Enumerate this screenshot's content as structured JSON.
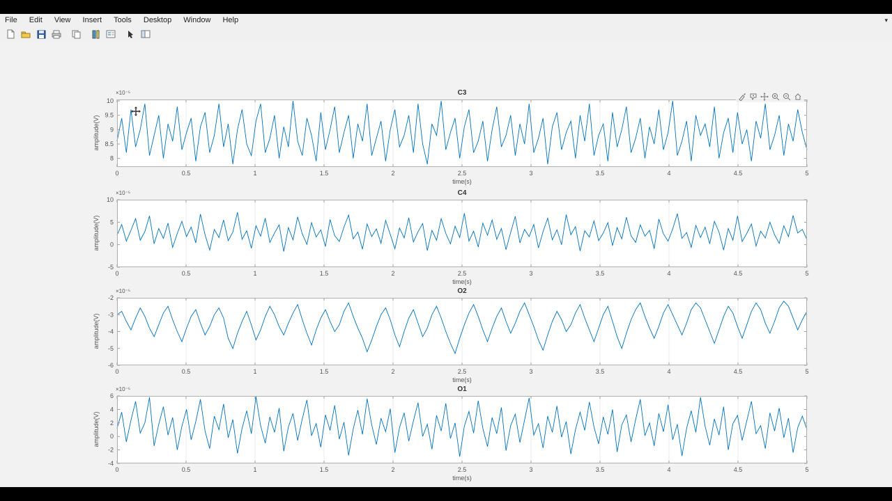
{
  "window": {
    "app": "MATLAB Figure",
    "background": "#f0f0f0",
    "canvas_background": "#f2f2f2"
  },
  "menu_bar": {
    "items": [
      "File",
      "Edit",
      "View",
      "Insert",
      "Tools",
      "Desktop",
      "Window",
      "Help"
    ],
    "overflow_icon": "▾"
  },
  "toolbar": {
    "icons": [
      "new-figure",
      "open-file",
      "save-figure",
      "print-figure",
      "copy-figure",
      "insert-colorbar",
      "insert-legend",
      "edit-plot",
      "property-editor"
    ]
  },
  "axes_toolbar": {
    "icons": [
      "brush",
      "data-cursor",
      "pan",
      "zoom-in",
      "zoom-out",
      "restore-view"
    ]
  },
  "chart_data": [
    {
      "type": "line",
      "title": "C3",
      "xlabel": "time(s)",
      "ylabel": "amplitude(V)",
      "exponent_label": "×10⁻⁵",
      "units_scale": "1e-5",
      "line_color": "#0072BD",
      "grid": "vertical",
      "xlim": [
        0,
        5
      ],
      "ylim": [
        7.7,
        10.05
      ],
      "xticks": [
        0,
        0.5,
        1,
        1.5,
        2,
        2.5,
        3,
        3.5,
        4,
        4.5,
        5
      ],
      "xtick_labels": [
        "0",
        "0.5",
        "1",
        "1.5",
        "2",
        "2.5",
        "3",
        "3.5",
        "4",
        "4.5",
        "5"
      ],
      "yticks": [
        8,
        8.5,
        9,
        9.5,
        10
      ],
      "ytick_labels": [
        "8",
        "8.5",
        "9",
        "9.5",
        "10"
      ],
      "values": [
        8.6,
        9.4,
        8.2,
        9.7,
        8.4,
        9.0,
        9.9,
        8.1,
        8.8,
        9.5,
        8.0,
        9.2,
        8.6,
        9.8,
        8.3,
        8.9,
        9.4,
        7.9,
        9.1,
        9.6,
        8.2,
        8.8,
        9.9,
        8.4,
        9.2,
        7.8,
        9.0,
        9.7,
        8.5,
        8.1,
        9.3,
        9.9,
        8.2,
        8.7,
        9.5,
        8.0,
        9.1,
        8.4,
        10.0,
        8.6,
        8.1,
        9.4,
        8.8,
        7.9,
        9.6,
        8.3,
        9.0,
        9.8,
        8.2,
        8.9,
        9.5,
        8.0,
        9.2,
        8.6,
        9.9,
        8.1,
        8.7,
        9.3,
        7.9,
        9.0,
        9.7,
        8.4,
        8.8,
        9.5,
        8.2,
        9.9,
        8.5,
        7.8,
        9.2,
        8.8,
        10.0,
        8.3,
        8.9,
        9.4,
        8.0,
        9.1,
        9.7,
        8.2,
        8.6,
        9.3,
        7.9,
        9.0,
        9.8,
        8.4,
        8.8,
        9.5,
        8.1,
        9.2,
        8.5,
        9.9,
        8.2,
        8.7,
        9.4,
        7.8,
        9.1,
        9.6,
        8.3,
        8.9,
        9.3,
        8.0,
        9.5,
        8.6,
        9.9,
        8.1,
        8.8,
        9.2,
        7.9,
        9.6,
        8.4,
        9.0,
        9.8,
        8.2,
        8.7,
        9.4,
        8.0,
        9.1,
        8.5,
        9.7,
        8.3,
        8.9,
        10.0,
        8.1,
        8.6,
        9.3,
        7.9,
        9.5,
        8.8,
        9.2,
        8.4,
        9.8,
        8.0,
        8.9,
        9.4,
        8.2,
        9.6,
        8.5,
        9.0,
        7.9,
        9.3,
        8.7,
        9.9,
        8.3,
        8.8,
        9.5,
        8.1,
        9.2,
        8.6,
        9.7,
        8.9,
        8.3
      ]
    },
    {
      "type": "line",
      "title": "C4",
      "xlabel": "time(s)",
      "ylabel": "amplitude(V)",
      "exponent_label": "×10⁻⁵",
      "units_scale": "1e-5",
      "line_color": "#0072BD",
      "grid": "vertical",
      "xlim": [
        0,
        5
      ],
      "ylim": [
        -5,
        10
      ],
      "xticks": [
        0,
        0.5,
        1,
        1.5,
        2,
        2.5,
        3,
        3.5,
        4,
        4.5,
        5
      ],
      "xtick_labels": [
        "0",
        "0.5",
        "1",
        "1.5",
        "2",
        "2.5",
        "3",
        "3.5",
        "4",
        "4.5",
        "5"
      ],
      "yticks": [
        -5,
        0,
        5,
        10
      ],
      "ytick_labels": [
        "-5",
        "0",
        "5",
        "10"
      ],
      "values": [
        2.1,
        4.5,
        0.8,
        3.2,
        5.8,
        1.0,
        2.9,
        6.4,
        0.2,
        3.6,
        1.4,
        4.8,
        -0.6,
        2.5,
        5.2,
        1.8,
        3.9,
        0.4,
        6.8,
        2.2,
        -1.2,
        3.4,
        1.6,
        5.5,
        0.9,
        2.8,
        7.2,
        1.2,
        3.1,
        -0.8,
        4.2,
        1.9,
        5.9,
        0.5,
        2.6,
        4.4,
        -1.5,
        3.8,
        1.1,
        6.2,
        2.4,
        0.1,
        4.9,
        1.7,
        3.3,
        -0.4,
        5.6,
        2.0,
        0.7,
        3.9,
        6.6,
        1.3,
        2.8,
        -1.0,
        4.6,
        1.8,
        3.5,
        0.3,
        5.4,
        2.3,
        -0.9,
        3.7,
        1.5,
        6.0,
        0.6,
        2.9,
        4.7,
        -1.3,
        3.2,
        1.0,
        5.8,
        2.5,
        0.2,
        4.1,
        1.6,
        7.0,
        0.8,
        3.0,
        -0.5,
        4.8,
        2.1,
        5.5,
        1.2,
        3.6,
        -1.1,
        2.7,
        6.3,
        0.4,
        3.4,
        1.8,
        4.5,
        -0.7,
        2.9,
        5.9,
        1.1,
        3.3,
        0.0,
        6.7,
        2.2,
        4.0,
        -1.4,
        3.1,
        1.7,
        5.3,
        0.9,
        2.6,
        4.9,
        -0.2,
        3.8,
        1.3,
        6.1,
        2.0,
        0.5,
        4.4,
        1.9,
        3.2,
        -0.9,
        5.7,
        2.4,
        0.8,
        3.5,
        6.9,
        1.4,
        2.7,
        -0.6,
        4.3,
        1.6,
        3.9,
        0.2,
        5.2,
        2.8,
        -1.2,
        3.6,
        1.0,
        6.4,
        0.7,
        2.5,
        4.6,
        -0.3,
        3.0,
        1.5,
        5.0,
        2.2,
        0.3,
        4.2,
        1.8,
        6.5,
        2.6,
        3.4,
        1.1
      ]
    },
    {
      "type": "line",
      "title": "O2",
      "xlabel": "time(s)",
      "ylabel": "amplitude(V)",
      "exponent_label": "×10⁻⁵",
      "units_scale": "1e-5",
      "line_color": "#0072BD",
      "grid": "vertical",
      "xlim": [
        0,
        5
      ],
      "ylim": [
        -6,
        -2
      ],
      "xticks": [
        0,
        0.5,
        1,
        1.5,
        2,
        2.5,
        3,
        3.5,
        4,
        4.5,
        5
      ],
      "xtick_labels": [
        "0",
        "0.5",
        "1",
        "1.5",
        "2",
        "2.5",
        "3",
        "3.5",
        "4",
        "4.5",
        "5"
      ],
      "yticks": [
        -6,
        -5,
        -4,
        -3,
        -2
      ],
      "ytick_labels": [
        "-6",
        "-5",
        "-4",
        "-3",
        "-2"
      ],
      "values": [
        -3.0,
        -2.8,
        -3.4,
        -3.9,
        -3.2,
        -2.6,
        -3.1,
        -3.8,
        -4.3,
        -3.6,
        -2.9,
        -2.5,
        -3.3,
        -4.0,
        -4.6,
        -3.8,
        -3.1,
        -2.7,
        -3.5,
        -4.2,
        -3.7,
        -3.0,
        -2.6,
        -3.2,
        -4.4,
        -5.0,
        -4.1,
        -3.4,
        -2.8,
        -3.6,
        -4.5,
        -3.9,
        -3.1,
        -2.5,
        -3.0,
        -3.7,
        -4.2,
        -3.5,
        -2.9,
        -2.4,
        -3.3,
        -4.1,
        -4.8,
        -3.9,
        -3.2,
        -2.7,
        -3.4,
        -4.0,
        -3.6,
        -2.8,
        -2.3,
        -3.1,
        -3.8,
        -4.4,
        -5.2,
        -4.5,
        -3.7,
        -3.0,
        -2.6,
        -3.3,
        -4.2,
        -4.9,
        -4.0,
        -3.2,
        -2.7,
        -3.5,
        -4.3,
        -3.8,
        -3.0,
        -2.5,
        -3.2,
        -4.0,
        -4.7,
        -5.3,
        -4.4,
        -3.6,
        -2.9,
        -2.4,
        -3.1,
        -3.9,
        -4.6,
        -3.8,
        -3.1,
        -2.6,
        -3.4,
        -4.1,
        -3.5,
        -2.8,
        -2.3,
        -3.0,
        -3.7,
        -4.5,
        -5.1,
        -4.2,
        -3.4,
        -2.8,
        -3.3,
        -4.0,
        -3.6,
        -2.9,
        -2.4,
        -3.2,
        -3.9,
        -4.6,
        -3.8,
        -3.0,
        -2.5,
        -3.4,
        -4.3,
        -5.0,
        -4.1,
        -3.3,
        -2.7,
        -2.3,
        -3.1,
        -3.8,
        -4.4,
        -3.7,
        -2.9,
        -2.4,
        -3.0,
        -3.6,
        -4.2,
        -3.5,
        -2.7,
        -2.3,
        -2.6,
        -3.3,
        -4.0,
        -4.7,
        -3.9,
        -3.1,
        -2.5,
        -2.9,
        -3.7,
        -4.4,
        -3.6,
        -2.8,
        -2.3,
        -2.7,
        -3.5,
        -4.1,
        -3.4,
        -2.6,
        -2.2,
        -2.5,
        -3.2,
        -3.9,
        -3.3,
        -2.8
      ]
    },
    {
      "type": "line",
      "title": "O1",
      "xlabel": "time(s)",
      "ylabel": "amplitude(V)",
      "exponent_label": "×10⁻⁵",
      "units_scale": "1e-5",
      "line_color": "#0072BD",
      "grid": "vertical",
      "xlim": [
        0,
        5
      ],
      "ylim": [
        -4,
        6
      ],
      "xticks": [
        0,
        0.5,
        1,
        1.5,
        2,
        2.5,
        3,
        3.5,
        4,
        4.5,
        5
      ],
      "xtick_labels": [
        "0",
        "0.5",
        "1",
        "1.5",
        "2",
        "2.5",
        "3",
        "3.5",
        "4",
        "4.5",
        "5"
      ],
      "yticks": [
        -4,
        -2,
        0,
        2,
        4,
        6
      ],
      "ytick_labels": [
        "-4",
        "-2",
        "0",
        "2",
        "4",
        "6"
      ],
      "values": [
        1.2,
        3.6,
        -0.8,
        2.4,
        5.2,
        0.5,
        2.0,
        5.8,
        -1.4,
        1.8,
        4.4,
        0.2,
        2.8,
        -2.0,
        1.5,
        4.0,
        -0.5,
        2.2,
        5.5,
        0.8,
        -1.8,
        3.0,
        1.0,
        4.8,
        -0.2,
        2.5,
        -2.5,
        1.2,
        3.8,
        0.4,
        5.9,
        1.6,
        -1.0,
        2.9,
        0.6,
        4.2,
        -2.2,
        1.4,
        3.4,
        -0.6,
        2.6,
        5.4,
        0.1,
        1.9,
        -1.6,
        3.2,
        0.9,
        4.6,
        -0.4,
        2.1,
        -2.8,
        1.1,
        3.9,
        0.3,
        5.6,
        1.7,
        -1.2,
        2.7,
        0.7,
        4.1,
        -2.4,
        1.3,
        3.5,
        -0.7,
        2.3,
        5.0,
        0.0,
        1.8,
        -1.9,
        3.1,
        0.8,
        4.9,
        -0.3,
        2.0,
        -3.0,
        1.5,
        3.7,
        0.5,
        5.3,
        1.2,
        -1.5,
        2.8,
        0.4,
        4.3,
        -2.1,
        1.6,
        3.3,
        -0.9,
        2.4,
        5.7,
        0.2,
        1.9,
        -1.7,
        3.0,
        0.6,
        4.5,
        -0.1,
        2.2,
        -2.6,
        1.0,
        3.6,
        0.9,
        5.1,
        1.4,
        -1.1,
        2.9,
        0.3,
        4.0,
        -2.3,
        1.7,
        3.2,
        -0.8,
        2.5,
        5.5,
        0.1,
        2.0,
        -1.4,
        3.4,
        0.7,
        4.7,
        -0.5,
        1.8,
        -2.9,
        1.2,
        3.8,
        0.6,
        5.8,
        1.5,
        -1.3,
        2.6,
        0.2,
        4.4,
        -2.0,
        1.9,
        3.1,
        -0.6,
        2.3,
        5.2,
        0.4,
        1.6,
        -1.8,
        3.5,
        0.8,
        4.2,
        -0.2,
        2.7,
        -2.4,
        1.3,
        3.0,
        1.0
      ]
    }
  ]
}
